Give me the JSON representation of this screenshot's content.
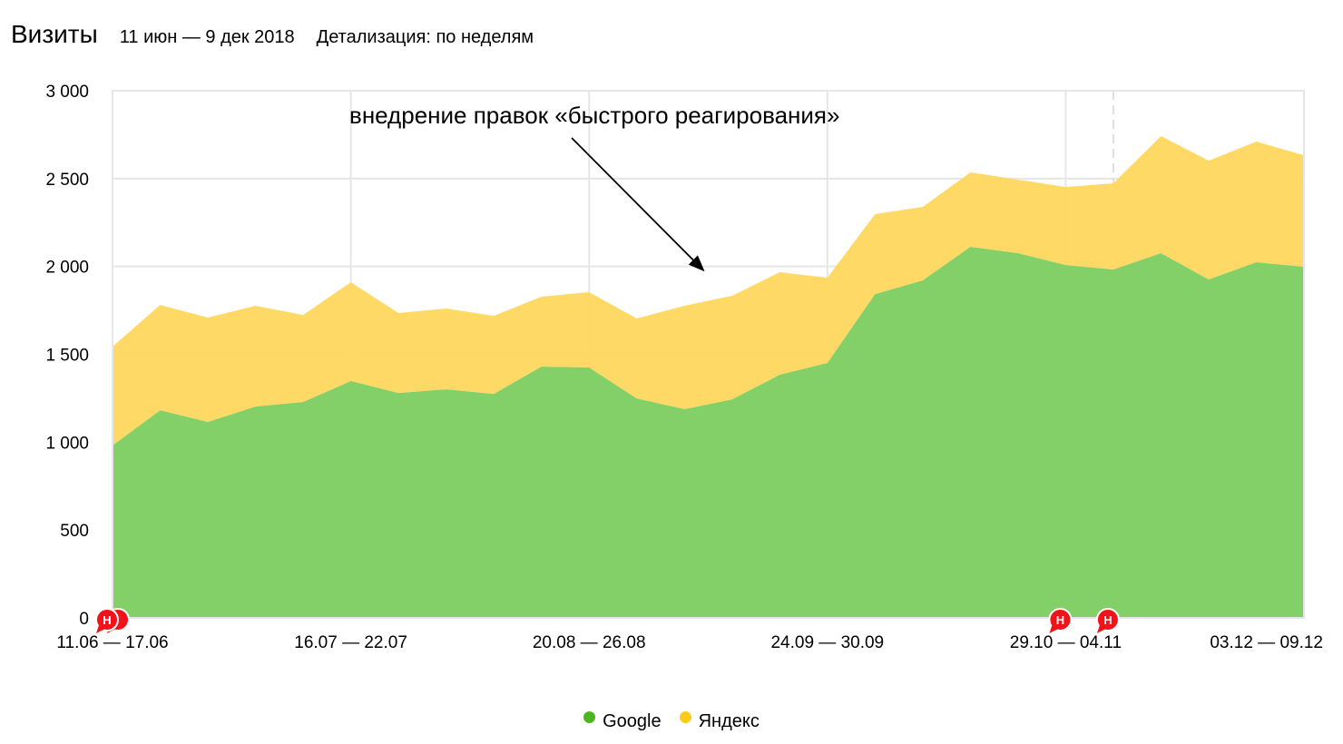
{
  "header": {
    "title": "Визиты",
    "date_range": "11 июн — 9 дек 2018",
    "detail": "Детализация: по неделям"
  },
  "chart_data": {
    "type": "area",
    "stacked": true,
    "title": "",
    "xlabel": "",
    "ylabel": "",
    "ylim": [
      0,
      3000
    ],
    "yticks": [
      "0",
      "500",
      "1 000",
      "1 500",
      "2 000",
      "2 500",
      "3 000"
    ],
    "ytick_values": [
      0,
      500,
      1000,
      1500,
      2000,
      2500,
      3000
    ],
    "xtick_labels": [
      {
        "index": 0,
        "label": "11.06 — 17.06"
      },
      {
        "index": 5,
        "label": "16.07 — 22.07"
      },
      {
        "index": 10,
        "label": "20.08 — 26.08"
      },
      {
        "index": 15,
        "label": "24.09 — 30.09"
      },
      {
        "index": 20,
        "label": "29.10 — 04.11"
      },
      {
        "index": 25,
        "label": "03.12 — 09.12"
      }
    ],
    "grid": true,
    "legend_position": "bottom",
    "series": [
      {
        "name": "Google",
        "color": "#7dcd60",
        "legend_color": "#4cb51f",
        "values": [
          981,
          1182,
          1115,
          1203,
          1229,
          1348,
          1280,
          1301,
          1275,
          1430,
          1425,
          1249,
          1188,
          1244,
          1384,
          1451,
          1843,
          1921,
          2112,
          2076,
          2008,
          1983,
          2076,
          1926,
          2024,
          1998
        ]
      },
      {
        "name": "Яндекс",
        "color": "#ffd75e",
        "legend_color": "#fccb1e",
        "values": [
          563,
          599,
          594,
          573,
          495,
          562,
          455,
          460,
          444,
          398,
          429,
          455,
          588,
          589,
          583,
          485,
          455,
          418,
          423,
          418,
          444,
          490,
          666,
          676,
          687,
          635
        ]
      }
    ],
    "annotation": {
      "text": "внедрение правок «быстрого реагирования»",
      "arrow_to_index": 12.4
    },
    "note_markers": [
      {
        "index": 0,
        "label": "Н",
        "count": 2
      },
      {
        "index": 20,
        "label": "Н"
      },
      {
        "index": 21,
        "label": "Н"
      }
    ],
    "dashed_line_index": 21
  }
}
